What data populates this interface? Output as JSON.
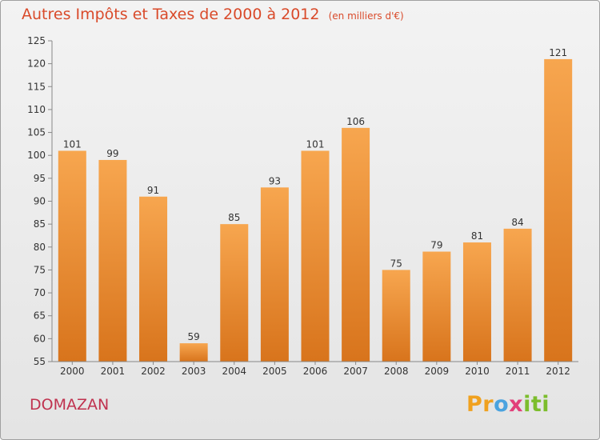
{
  "header": {
    "title": "Autres Impôts et Taxes de 2000 à 2012",
    "subtitle": "(en milliers d'€)"
  },
  "place": "DOMAZAN",
  "logo": {
    "text": "Proxiti",
    "parts": [
      "Pr",
      "o",
      "x",
      "iti"
    ]
  },
  "colors": {
    "bar_light": "#f7a64f",
    "bar_dark": "#d8741c",
    "title": "#d94a2a",
    "place": "#c0324f"
  },
  "chart_data": {
    "type": "bar",
    "categories": [
      "2000",
      "2001",
      "2002",
      "2003",
      "2004",
      "2005",
      "2006",
      "2007",
      "2008",
      "2009",
      "2010",
      "2011",
      "2012"
    ],
    "values": [
      101,
      99,
      91,
      59,
      85,
      93,
      101,
      106,
      75,
      79,
      81,
      84,
      121
    ],
    "value_labels": [
      "101",
      "99",
      "91",
      "59",
      "85",
      "93",
      "101",
      "106",
      "75",
      "79",
      "81",
      "84",
      "121"
    ],
    "ylim": [
      55,
      125
    ],
    "yticks": [
      55,
      60,
      65,
      70,
      75,
      80,
      85,
      90,
      95,
      100,
      105,
      110,
      115,
      120,
      125
    ],
    "grid": false,
    "title": "Autres Impôts et Taxes de 2000 à 2012",
    "xlabel": "",
    "ylabel": ""
  }
}
